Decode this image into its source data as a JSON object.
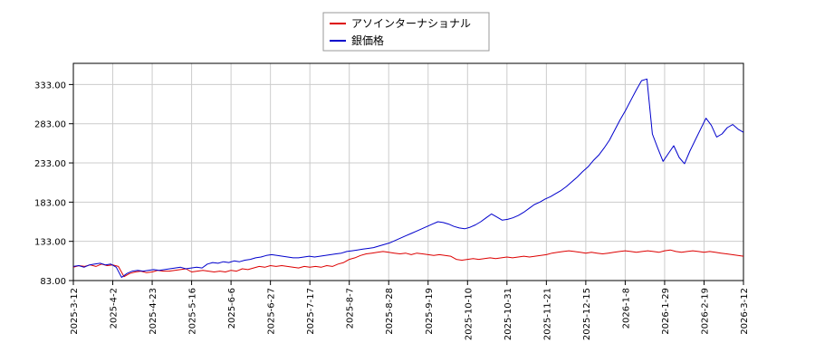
{
  "chart_data": {
    "type": "line",
    "title": "",
    "xlabel": "",
    "ylabel": "",
    "ylim": [
      83,
      360
    ],
    "y_ticks": [
      "83.00",
      "133.00",
      "183.00",
      "233.00",
      "283.00",
      "333.00"
    ],
    "y_tick_values": [
      83,
      133,
      183,
      233,
      283,
      333
    ],
    "x_ticks": [
      "2025-3-12",
      "2025-4-2",
      "2025-4-23",
      "2025-5-16",
      "2025-6-6",
      "2025-6-27",
      "2025-7-17",
      "2025-8-7",
      "2025-8-28",
      "2025-9-19",
      "2025-10-10",
      "2025-10-31",
      "2025-11-21",
      "2025-12-15",
      "2026-1-8",
      "2026-1-29",
      "2026-2-19",
      "2026-3-12"
    ],
    "grid": true,
    "legend_position": "top-center",
    "series": [
      {
        "name": "アソインターナショナル",
        "color": "#dd0000",
        "values": [
          100,
          102,
          101,
          103,
          101,
          104,
          102,
          103,
          101,
          88,
          92,
          94,
          95,
          93,
          94,
          96,
          95,
          95,
          96,
          97,
          98,
          94,
          95,
          96,
          95,
          94,
          95,
          94,
          96,
          95,
          98,
          97,
          99,
          101,
          100,
          102,
          101,
          102,
          101,
          100,
          99,
          101,
          100,
          101,
          100,
          102,
          101,
          104,
          106,
          110,
          112,
          115,
          117,
          118,
          119,
          120,
          119,
          118,
          117,
          118,
          116,
          118,
          117,
          116,
          115,
          116,
          115,
          114,
          110,
          109,
          110,
          111,
          110,
          111,
          112,
          111,
          112,
          113,
          112,
          113,
          114,
          113,
          114,
          115,
          116,
          118,
          119,
          120,
          121,
          120,
          119,
          118,
          119,
          118,
          117,
          118,
          119,
          120,
          121,
          120,
          119,
          120,
          121,
          120,
          119,
          121,
          122,
          120,
          119,
          120,
          121,
          120,
          119,
          120,
          119,
          118,
          117,
          116,
          115,
          114
        ]
      },
      {
        "name": "銀価格",
        "color": "#0000cc",
        "values": [
          101,
          102,
          100,
          103,
          104,
          105,
          103,
          104,
          100,
          87,
          92,
          95,
          96,
          95,
          96,
          97,
          96,
          97,
          98,
          99,
          100,
          98,
          99,
          100,
          99,
          104,
          106,
          105,
          107,
          106,
          108,
          107,
          109,
          110,
          112,
          113,
          115,
          116,
          115,
          114,
          113,
          112,
          112,
          113,
          114,
          113,
          114,
          115,
          116,
          117,
          118,
          120,
          121,
          122,
          123,
          124,
          125,
          127,
          129,
          131,
          134,
          137,
          140,
          143,
          146,
          149,
          152,
          155,
          158,
          157,
          155,
          152,
          150,
          149,
          151,
          154,
          158,
          163,
          168,
          164,
          160,
          161,
          163,
          166,
          170,
          175,
          180,
          183,
          187,
          190,
          194,
          198,
          203,
          209,
          215,
          222,
          228,
          236,
          243,
          252,
          262,
          275,
          288,
          300,
          313,
          326,
          338,
          340,
          270,
          252,
          235,
          245,
          255,
          240,
          232,
          248,
          262,
          276,
          290,
          281,
          266,
          270,
          278,
          282,
          276,
          272
        ]
      }
    ]
  }
}
